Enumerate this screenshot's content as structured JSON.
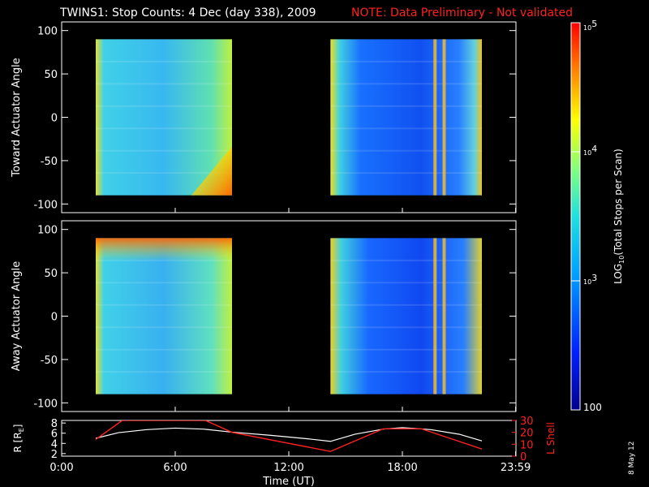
{
  "title": {
    "main": "TWINS1: Stop Counts:  4 Dec (day 338), 2009",
    "note": "NOTE: Data Preliminary - Not validated"
  },
  "footer_date": "8 May 12",
  "colors": {
    "note": "#ff2020",
    "r_line": "#ffffff",
    "lshell_line": "#ff2020",
    "background": "#000000"
  },
  "chart_data": [
    {
      "type": "heatmap",
      "id": "toward",
      "ylabel": "Toward Actuator Angle",
      "ylim": [
        -110,
        110
      ],
      "yticks": [
        -100,
        -50,
        0,
        50,
        100
      ],
      "xlim": [
        0,
        24
      ],
      "data_blocks": [
        {
          "t_start": 1.8,
          "t_end": 9.0,
          "angle_min": -90,
          "angle_max": 90
        },
        {
          "t_start": 14.2,
          "t_end": 22.2,
          "angle_min": -90,
          "angle_max": 90
        }
      ]
    },
    {
      "type": "heatmap",
      "id": "away",
      "ylabel": "Away Actuator Angle",
      "ylim": [
        -110,
        110
      ],
      "yticks": [
        -100,
        -50,
        0,
        50,
        100
      ],
      "xlim": [
        0,
        24
      ],
      "data_blocks": [
        {
          "t_start": 1.8,
          "t_end": 9.0,
          "angle_min": -90,
          "angle_max": 90
        },
        {
          "t_start": 14.2,
          "t_end": 22.2,
          "angle_min": -90,
          "angle_max": 90
        }
      ]
    },
    {
      "type": "line",
      "id": "orbit",
      "xlabel": "Time (UT)",
      "ylabel_left": "R [R",
      "ylabel_left_sub": "E",
      "ylabel_left_close": "]",
      "ylabel_right": "L Shell",
      "xlim": [
        0,
        24
      ],
      "xticks": [
        0,
        6,
        12,
        18,
        23.983
      ],
      "xtick_labels": [
        "0:00",
        "6:00",
        "12:00",
        "18:00",
        "23:59"
      ],
      "ylim_left": [
        1.5,
        8.5
      ],
      "yticks_left": [
        2,
        4,
        6,
        8
      ],
      "ylim_right": [
        0,
        30
      ],
      "yticks_right": [
        0,
        10,
        20,
        30
      ],
      "series": [
        {
          "name": "R",
          "x": [
            1.8,
            3,
            4.5,
            6,
            7.5,
            9,
            11,
            13,
            14.2,
            15.5,
            17,
            18,
            19.5,
            21,
            22.2
          ],
          "y": [
            5.0,
            6.1,
            6.7,
            7.0,
            6.8,
            6.2,
            5.6,
            4.9,
            4.4,
            5.8,
            6.8,
            7.1,
            6.7,
            5.8,
            4.5
          ]
        },
        {
          "name": "L Shell",
          "x": [
            1.8,
            3.2,
            7.6,
            9.0,
            14.2,
            17.0,
            19.0,
            22.2
          ],
          "y": [
            14,
            30,
            30,
            20,
            4,
            23,
            23,
            6
          ]
        }
      ]
    },
    {
      "type": "colorbar",
      "id": "colorbar",
      "label": "LOG",
      "label_sub": "10",
      "label_rest": "(Total Stops per Scan)",
      "range": [
        100,
        100000
      ],
      "tick_labels": [
        {
          "base": "10",
          "exp": "5",
          "value": 100000
        },
        {
          "base": "10",
          "exp": "4",
          "value": 10000
        },
        {
          "base": "10",
          "exp": "3",
          "value": 1000
        },
        {
          "base": "100",
          "exp": "",
          "value": 100
        }
      ]
    }
  ]
}
